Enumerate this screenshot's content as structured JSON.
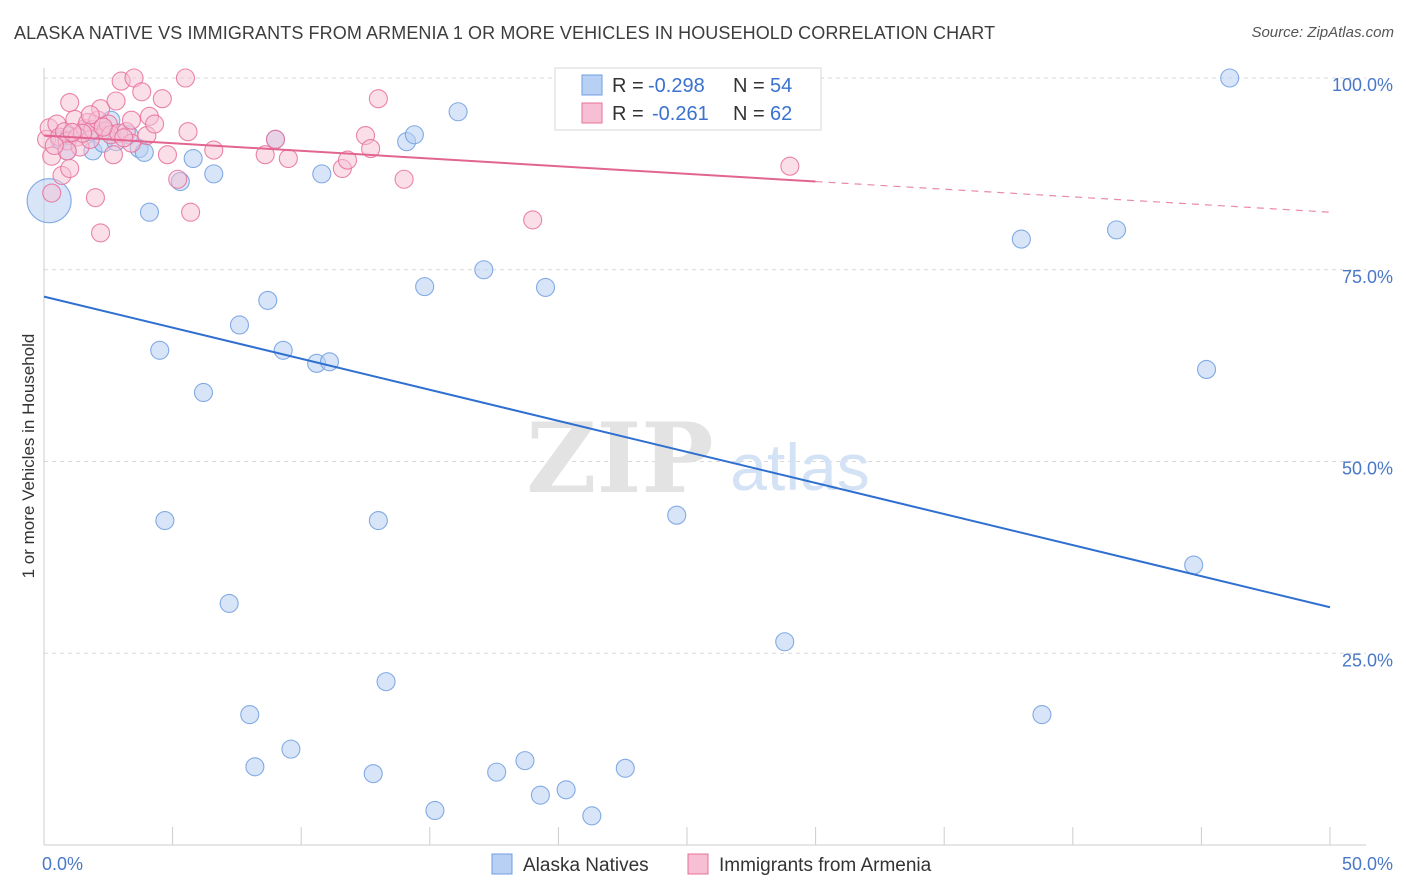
{
  "title": "ALASKA NATIVE VS IMMIGRANTS FROM ARMENIA 1 OR MORE VEHICLES IN HOUSEHOLD CORRELATION CHART",
  "source": "Source: ZipAtlas.com",
  "watermark": {
    "zip": "ZIP",
    "atlas": "atlas"
  },
  "legend": {
    "alaska": {
      "r_label": "R =",
      "r_value": "-0.298",
      "n_label": "N =",
      "n_value": "54"
    },
    "armenia": {
      "r_label": "R =",
      "r_value": "-0.261",
      "n_label": "N =",
      "n_value": "62"
    }
  },
  "chart_data": {
    "type": "scatter",
    "xlabel": "",
    "ylabel": "1 or more Vehicles in Household",
    "xlim": [
      0,
      50
    ],
    "ylim": [
      0,
      100
    ],
    "x_tick_labels": [
      {
        "value": 0,
        "label": "0.0%"
      },
      {
        "value": 50,
        "label": "50.0%"
      }
    ],
    "y_tick_labels": [
      {
        "value": 25,
        "label": "25.0%"
      },
      {
        "value": 50,
        "label": "50.0%"
      },
      {
        "value": 75,
        "label": "75.0%"
      },
      {
        "value": 100,
        "label": "100.0%"
      }
    ],
    "series": [
      {
        "name": "Alaska Natives",
        "color": "#6f9ee0",
        "fill": "#b8d0f3",
        "r": -0.298,
        "n": 54,
        "trend": {
          "x0": 0,
          "y0": 71.5,
          "x1": 50,
          "y1": 31.0
        },
        "points": [
          [
            0.2,
            84.0,
            1
          ],
          [
            0.6,
            92.0,
            0
          ],
          [
            0.9,
            90.5,
            0
          ],
          [
            1.0,
            92.5,
            0
          ],
          [
            1.8,
            93.0,
            0
          ],
          [
            1.9,
            90.5,
            0
          ],
          [
            2.3,
            91.5,
            0
          ],
          [
            2.6,
            94.5,
            0
          ],
          [
            2.8,
            91.7,
            0
          ],
          [
            3.3,
            92.6,
            0
          ],
          [
            3.7,
            90.8,
            0
          ],
          [
            3.9,
            90.3,
            0
          ],
          [
            4.1,
            82.5,
            0
          ],
          [
            4.5,
            64.5,
            0
          ],
          [
            4.7,
            42.3,
            0
          ],
          [
            5.3,
            86.5,
            0
          ],
          [
            5.8,
            89.5,
            0
          ],
          [
            6.2,
            59.0,
            0
          ],
          [
            6.6,
            87.5,
            0
          ],
          [
            7.2,
            31.5,
            0
          ],
          [
            7.6,
            67.8,
            0
          ],
          [
            8.0,
            17.0,
            0
          ],
          [
            8.2,
            10.2,
            0
          ],
          [
            8.7,
            71.0,
            0
          ],
          [
            9.0,
            92.0,
            0
          ],
          [
            9.3,
            64.5,
            0
          ],
          [
            9.6,
            12.5,
            0
          ],
          [
            10.6,
            62.8,
            0
          ],
          [
            10.8,
            87.5,
            0
          ],
          [
            11.1,
            63.0,
            0
          ],
          [
            12.8,
            9.3,
            0
          ],
          [
            13.0,
            42.3,
            0
          ],
          [
            13.3,
            21.3,
            0
          ],
          [
            14.1,
            91.7,
            0
          ],
          [
            14.4,
            92.6,
            0
          ],
          [
            14.8,
            72.8,
            0
          ],
          [
            15.2,
            4.5,
            0
          ],
          [
            16.1,
            95.6,
            0
          ],
          [
            17.1,
            75.0,
            0
          ],
          [
            17.6,
            9.5,
            0
          ],
          [
            18.7,
            11.0,
            0
          ],
          [
            19.3,
            6.5,
            0
          ],
          [
            19.5,
            72.7,
            0
          ],
          [
            20.3,
            7.2,
            0
          ],
          [
            21.3,
            3.8,
            0
          ],
          [
            22.6,
            10.0,
            0
          ],
          [
            24.6,
            43.0,
            0
          ],
          [
            28.8,
            26.5,
            0
          ],
          [
            38.0,
            79.0,
            0
          ],
          [
            38.8,
            17.0,
            0
          ],
          [
            41.7,
            80.2,
            0
          ],
          [
            44.7,
            36.5,
            0
          ],
          [
            45.2,
            62.0,
            0
          ],
          [
            46.1,
            100.0,
            0
          ]
        ]
      },
      {
        "name": "Immigrants from Armenia",
        "color": "#e8709a",
        "fill": "#f6bfd3",
        "r": -0.261,
        "n": 62,
        "trend": {
          "x0": 0,
          "y0": 92.5,
          "x1": 30,
          "y1": 86.5,
          "dash_x1": 50,
          "dash_y1": 82.5
        },
        "points": [
          [
            0.1,
            92.0,
            0
          ],
          [
            0.2,
            93.5,
            0
          ],
          [
            0.3,
            89.8,
            0
          ],
          [
            0.5,
            94.0,
            0
          ],
          [
            0.6,
            92.3,
            0
          ],
          [
            0.7,
            87.3,
            0
          ],
          [
            0.8,
            93.0,
            0
          ],
          [
            0.9,
            91.8,
            0
          ],
          [
            1.0,
            96.8,
            0
          ],
          [
            1.0,
            88.2,
            0
          ],
          [
            1.2,
            94.6,
            0
          ],
          [
            1.3,
            92.3,
            0
          ],
          [
            1.4,
            91.0,
            0
          ],
          [
            1.6,
            93.4,
            0
          ],
          [
            1.7,
            94.2,
            0
          ],
          [
            1.8,
            92.0,
            0
          ],
          [
            1.9,
            93.3,
            0
          ],
          [
            2.0,
            84.4,
            0
          ],
          [
            2.1,
            94.5,
            0
          ],
          [
            2.2,
            96.0,
            0
          ],
          [
            2.2,
            79.8,
            0
          ],
          [
            2.4,
            93.1,
            0
          ],
          [
            2.5,
            94.0,
            0
          ],
          [
            2.6,
            92.6,
            0
          ],
          [
            2.7,
            90.0,
            0
          ],
          [
            2.8,
            97.0,
            0
          ],
          [
            2.9,
            92.8,
            0
          ],
          [
            3.0,
            99.6,
            0
          ],
          [
            3.2,
            93.0,
            0
          ],
          [
            3.4,
            91.5,
            0
          ],
          [
            3.4,
            94.5,
            0
          ],
          [
            3.5,
            100.0,
            0
          ],
          [
            3.8,
            98.2,
            0
          ],
          [
            4.0,
            92.5,
            0
          ],
          [
            4.1,
            95.0,
            0
          ],
          [
            4.3,
            94.0,
            0
          ],
          [
            4.6,
            97.3,
            0
          ],
          [
            4.8,
            90.0,
            0
          ],
          [
            5.2,
            86.8,
            0
          ],
          [
            5.5,
            100.0,
            0
          ],
          [
            5.6,
            93.0,
            0
          ],
          [
            5.7,
            82.5,
            0
          ],
          [
            6.6,
            90.6,
            0
          ],
          [
            8.6,
            90.0,
            0
          ],
          [
            9.0,
            92.0,
            0
          ],
          [
            9.5,
            89.5,
            0
          ],
          [
            11.6,
            88.2,
            0
          ],
          [
            11.8,
            89.3,
            0
          ],
          [
            12.5,
            92.5,
            0
          ],
          [
            12.7,
            90.8,
            0
          ],
          [
            13.0,
            97.3,
            0
          ],
          [
            14.0,
            86.8,
            0
          ],
          [
            19.0,
            81.5,
            0
          ],
          [
            29.0,
            88.5,
            0
          ],
          [
            0.3,
            85.0,
            0
          ],
          [
            0.9,
            90.5,
            0
          ],
          [
            1.5,
            92.8,
            0
          ],
          [
            2.3,
            93.6,
            0
          ],
          [
            3.1,
            92.2,
            0
          ],
          [
            0.4,
            91.2,
            0
          ],
          [
            1.1,
            92.9,
            0
          ],
          [
            1.8,
            95.2,
            0
          ]
        ]
      }
    ]
  }
}
